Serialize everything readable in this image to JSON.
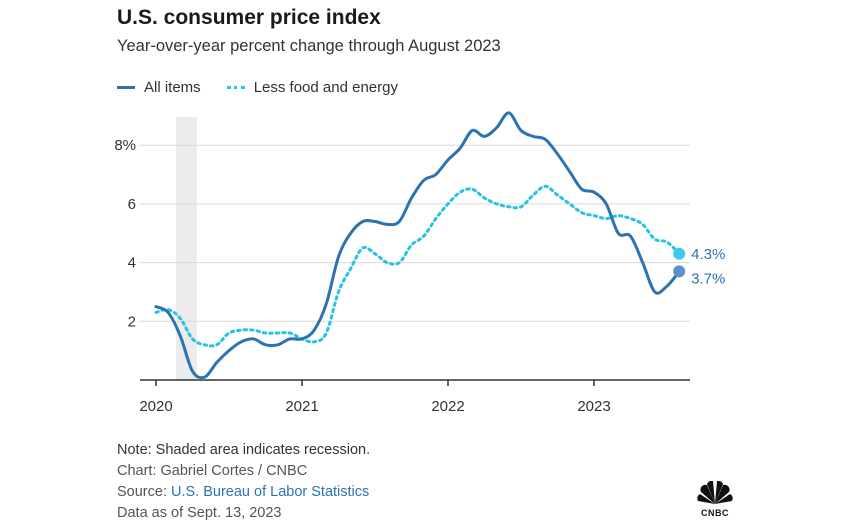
{
  "chart_data": {
    "type": "line",
    "title": "U.S. consumer price index",
    "subtitle": "Year-over-year percent change through August 2023",
    "x_tick_labels": [
      "2020",
      "2021",
      "2022",
      "2023"
    ],
    "y_tick_labels": [
      "2",
      "4",
      "6",
      "8%"
    ],
    "y_ticks": [
      2,
      4,
      6,
      8
    ],
    "ylim": [
      0,
      9.2
    ],
    "x_range_months": [
      0,
      44
    ],
    "recession_shade_months": [
      1.65,
      3.35
    ],
    "colors": {
      "all_items": "#2c73b3",
      "core": "#28c3e3",
      "grid": "#d9d9d9",
      "recession": "#ececec"
    },
    "series": [
      {
        "name": "All items",
        "style": "solid",
        "end_label": "3.7%",
        "values": [
          2.5,
          2.3,
          1.5,
          0.3,
          0.1,
          0.6,
          1.0,
          1.3,
          1.4,
          1.2,
          1.2,
          1.4,
          1.4,
          1.7,
          2.6,
          4.2,
          5.0,
          5.4,
          5.4,
          5.3,
          5.4,
          6.2,
          6.8,
          7.0,
          7.5,
          7.9,
          8.5,
          8.3,
          8.6,
          9.1,
          8.5,
          8.3,
          8.2,
          7.7,
          7.1,
          6.5,
          6.4,
          6.0,
          5.0,
          4.9,
          4.0,
          3.0,
          3.2,
          3.7
        ]
      },
      {
        "name": "Less food and energy",
        "style": "dotted",
        "end_label": "4.3%",
        "values": [
          2.3,
          2.4,
          2.1,
          1.4,
          1.2,
          1.2,
          1.6,
          1.7,
          1.7,
          1.6,
          1.6,
          1.6,
          1.4,
          1.3,
          1.6,
          3.0,
          3.8,
          4.5,
          4.3,
          4.0,
          4.0,
          4.6,
          4.9,
          5.5,
          6.0,
          6.4,
          6.5,
          6.2,
          6.0,
          5.9,
          5.9,
          6.3,
          6.6,
          6.3,
          6.0,
          5.7,
          5.6,
          5.5,
          5.6,
          5.5,
          5.3,
          4.8,
          4.7,
          4.3
        ]
      }
    ]
  },
  "footer": {
    "note": "Note: Shaded area indicates recession.",
    "credit": "Chart: Gabriel Cortes / CNBC",
    "source_prefix": "Source: ",
    "source_link": "U.S. Bureau of Labor Statistics",
    "data_date": "Data as of Sept. 13, 2023"
  },
  "logo": {
    "text": "CNBC"
  }
}
